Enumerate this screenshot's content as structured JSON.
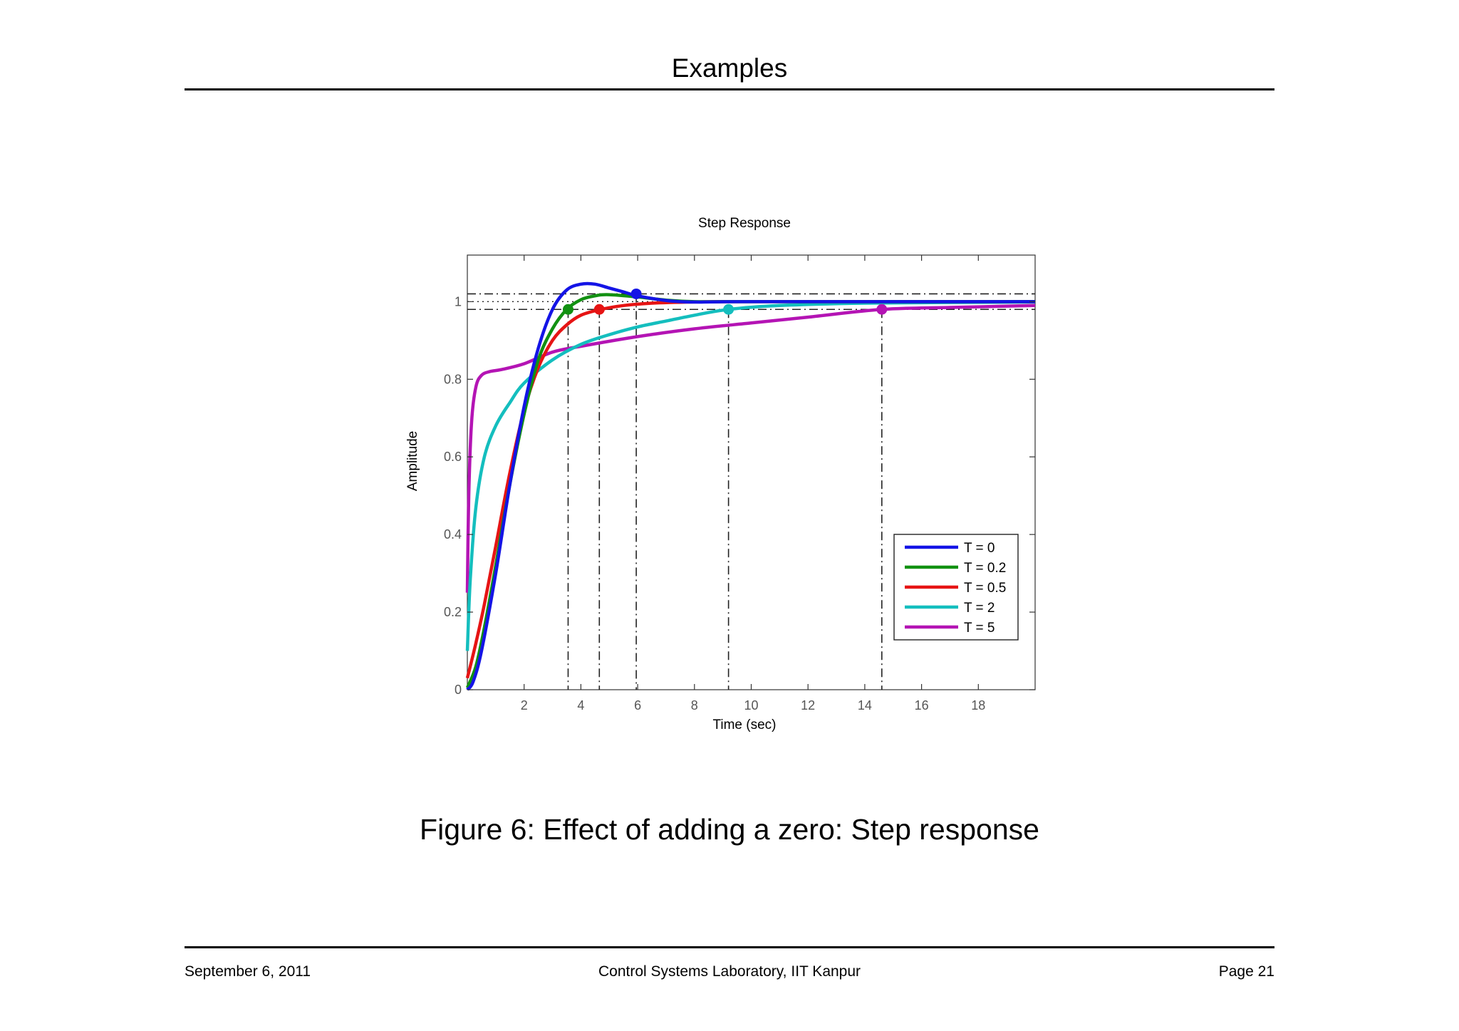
{
  "header": {
    "title": "Examples"
  },
  "caption": "Figure 6: Effect of adding a zero: Step response",
  "footer": {
    "date": "September 6, 2011",
    "lab": "Control Systems Laboratory, IIT Kanpur",
    "page": "Page 21"
  },
  "chart_data": {
    "type": "line",
    "title": "Step Response",
    "xlabel": "Time (sec)",
    "ylabel": "Amplitude",
    "xlim": [
      0,
      20
    ],
    "ylim": [
      0,
      1.12
    ],
    "xticks": [
      2,
      4,
      6,
      8,
      10,
      12,
      14,
      16,
      18
    ],
    "yticks": [
      0,
      0.2,
      0.4,
      0.6,
      0.8,
      1
    ],
    "ytick_labels": [
      "0",
      "0.2",
      "0.4",
      "0.6",
      "0.8",
      "1"
    ],
    "settling_band": [
      0.98,
      1.02
    ],
    "legend_position": "bottom-right",
    "series": [
      {
        "name": "T = 0",
        "color": "#1414e6",
        "x": [
          0,
          0.2,
          0.5,
          1,
          1.5,
          2,
          2.5,
          3,
          3.5,
          4,
          4.5,
          5,
          5.5,
          6,
          7,
          8,
          10,
          20
        ],
        "y": [
          0,
          0.02,
          0.1,
          0.3,
          0.53,
          0.73,
          0.88,
          0.98,
          1.03,
          1.045,
          1.045,
          1.035,
          1.025,
          1.015,
          1.003,
          0.999,
          1.0,
          1.0
        ],
        "settle": {
          "t": 5.95,
          "v": 1.02
        }
      },
      {
        "name": "T = 0.2",
        "color": "#129112",
        "x": [
          0,
          0.3,
          0.6,
          1,
          1.5,
          2,
          2.5,
          3,
          3.5,
          4,
          4.5,
          5,
          6,
          7,
          8,
          10,
          20
        ],
        "y": [
          0.005,
          0.06,
          0.16,
          0.32,
          0.53,
          0.71,
          0.85,
          0.93,
          0.98,
          1.005,
          1.015,
          1.018,
          1.012,
          1.004,
          1.0,
          1.0,
          1.0
        ],
        "settle": {
          "t": 3.55,
          "v": 0.98
        }
      },
      {
        "name": "T = 0.5",
        "color": "#e61414",
        "x": [
          0,
          0.3,
          0.6,
          1,
          1.5,
          2,
          2.5,
          3,
          3.5,
          4,
          4.7,
          5.5,
          6.5,
          8,
          10,
          20
        ],
        "y": [
          0.03,
          0.12,
          0.22,
          0.37,
          0.56,
          0.72,
          0.83,
          0.9,
          0.94,
          0.965,
          0.98,
          0.99,
          0.996,
          0.999,
          1.0,
          1.0
        ],
        "settle": {
          "t": 4.65,
          "v": 0.98
        }
      },
      {
        "name": "T = 2",
        "color": "#14bebe",
        "x": [
          0,
          0.1,
          0.3,
          0.6,
          1,
          1.5,
          2,
          3,
          4,
          5,
          6,
          7,
          8,
          9.2,
          11,
          14,
          20
        ],
        "y": [
          0.1,
          0.28,
          0.47,
          0.6,
          0.68,
          0.74,
          0.79,
          0.85,
          0.89,
          0.915,
          0.935,
          0.95,
          0.965,
          0.98,
          0.99,
          0.996,
          0.999
        ],
        "settle": {
          "t": 9.2,
          "v": 0.98
        }
      },
      {
        "name": "T = 5",
        "color": "#b414b4",
        "x": [
          0,
          0.05,
          0.15,
          0.3,
          0.5,
          0.8,
          1.2,
          2,
          3,
          4,
          6,
          8,
          10,
          12,
          14.6,
          17,
          20
        ],
        "y": [
          0.25,
          0.5,
          0.69,
          0.78,
          0.81,
          0.82,
          0.825,
          0.84,
          0.87,
          0.885,
          0.91,
          0.93,
          0.945,
          0.96,
          0.98,
          0.985,
          0.99
        ],
        "settle": {
          "t": 14.6,
          "v": 0.98
        }
      }
    ]
  }
}
